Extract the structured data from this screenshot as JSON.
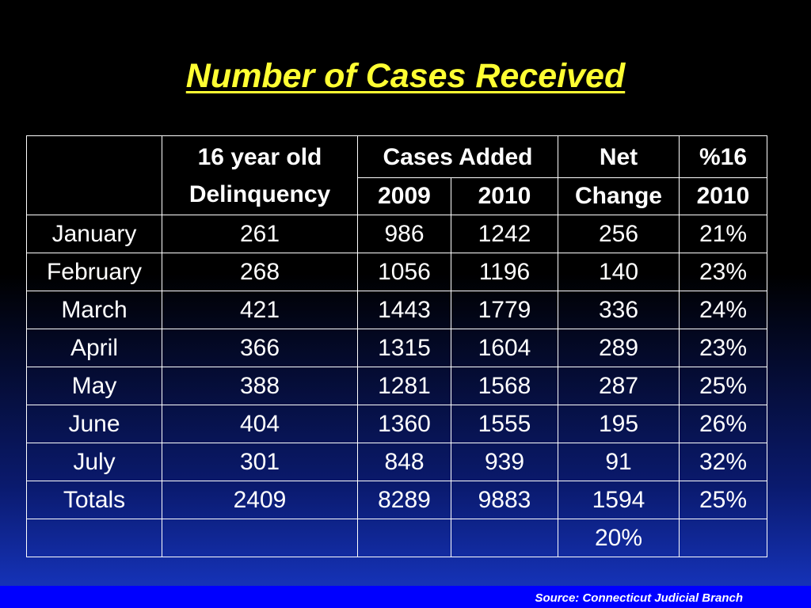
{
  "title": "Number of Cases Received",
  "header": {
    "col1_line1": "16 year old",
    "col1_line2": "Delinquency",
    "cases_added": "Cases Added",
    "year_2009": "2009",
    "year_2010": "2010",
    "net_line1": "Net",
    "net_line2": "Change",
    "pct_line1": "%16",
    "pct_line2": "2010"
  },
  "rows": [
    {
      "month": "January",
      "delinquency": "261",
      "y2009": "986",
      "y2010": "1242",
      "net": "256",
      "pct": "21%"
    },
    {
      "month": "February",
      "delinquency": "268",
      "y2009": "1056",
      "y2010": "1196",
      "net": "140",
      "pct": "23%"
    },
    {
      "month": "March",
      "delinquency": "421",
      "y2009": "1443",
      "y2010": "1779",
      "net": "336",
      "pct": "24%"
    },
    {
      "month": "April",
      "delinquency": "366",
      "y2009": "1315",
      "y2010": "1604",
      "net": "289",
      "pct": "23%"
    },
    {
      "month": "May",
      "delinquency": "388",
      "y2009": "1281",
      "y2010": "1568",
      "net": "287",
      "pct": "25%"
    },
    {
      "month": "June",
      "delinquency": "404",
      "y2009": "1360",
      "y2010": "1555",
      "net": "195",
      "pct": "26%"
    },
    {
      "month": "July",
      "delinquency": "301",
      "y2009": "848",
      "y2010": "939",
      "net": "91",
      "pct": "32%"
    },
    {
      "month": "Totals",
      "delinquency": "2409",
      "y2009": "8289",
      "y2010": "9883",
      "net": "1594",
      "pct": "25%"
    }
  ],
  "last_row": {
    "net": "20%"
  },
  "source": "Source: Connecticut Judicial Branch",
  "colors": {
    "title": "#ffff33",
    "text": "#ffffff",
    "footer_bar": "#0000ff"
  }
}
